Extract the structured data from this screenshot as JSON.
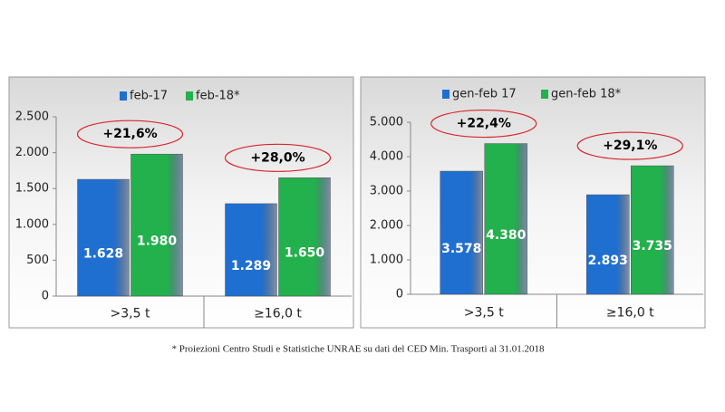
{
  "chart_data": [
    {
      "type": "bar",
      "categories": [
        ">3,5 t",
        "≥16,0 t"
      ],
      "series": [
        {
          "name": "feb-17",
          "color": "#1f6fd0",
          "values": [
            1628,
            1289
          ],
          "value_labels": [
            "1.628",
            "1.289"
          ]
        },
        {
          "name": "feb-18*",
          "color": "#22b14c",
          "values": [
            1980,
            1650
          ],
          "value_labels": [
            "1.980",
            "1.650"
          ]
        }
      ],
      "annotations": [
        "+21,6%",
        "+28,0%"
      ],
      "ylim": [
        0,
        2500
      ],
      "yticks": [
        0,
        {
          "value": 500,
          "label": "500"
        },
        {
          "value": 1000,
          "label": "1.000"
        },
        {
          "value": 1500,
          "label": "1.500"
        },
        {
          "value": 2000,
          "label": "2.000"
        },
        {
          "value": 2500,
          "label": "2.500"
        }
      ]
    },
    {
      "type": "bar",
      "categories": [
        ">3,5 t",
        "≥16,0 t"
      ],
      "series": [
        {
          "name": "gen-feb 17",
          "color": "#1f6fd0",
          "values": [
            3578,
            2893
          ],
          "value_labels": [
            "3.578",
            "2.893"
          ]
        },
        {
          "name": "gen-feb 18*",
          "color": "#22b14c",
          "values": [
            4380,
            3735
          ],
          "value_labels": [
            "4.380",
            "3.735"
          ]
        }
      ],
      "annotations": [
        "+22,4%",
        "+29,1%"
      ],
      "ylim": [
        0,
        5000
      ],
      "yticks": [
        0,
        {
          "value": 1000,
          "label": "1.000"
        },
        {
          "value": 2000,
          "label": "2.000"
        },
        {
          "value": 3000,
          "label": "3.000"
        },
        {
          "value": 4000,
          "label": "4.000"
        },
        {
          "value": 5000,
          "label": "5.000"
        }
      ]
    }
  ],
  "footnote": "* Proiezioni Centro Studi e Statistiche UNRAE su dati del CED Min. Trasporti al 31.01.2018"
}
